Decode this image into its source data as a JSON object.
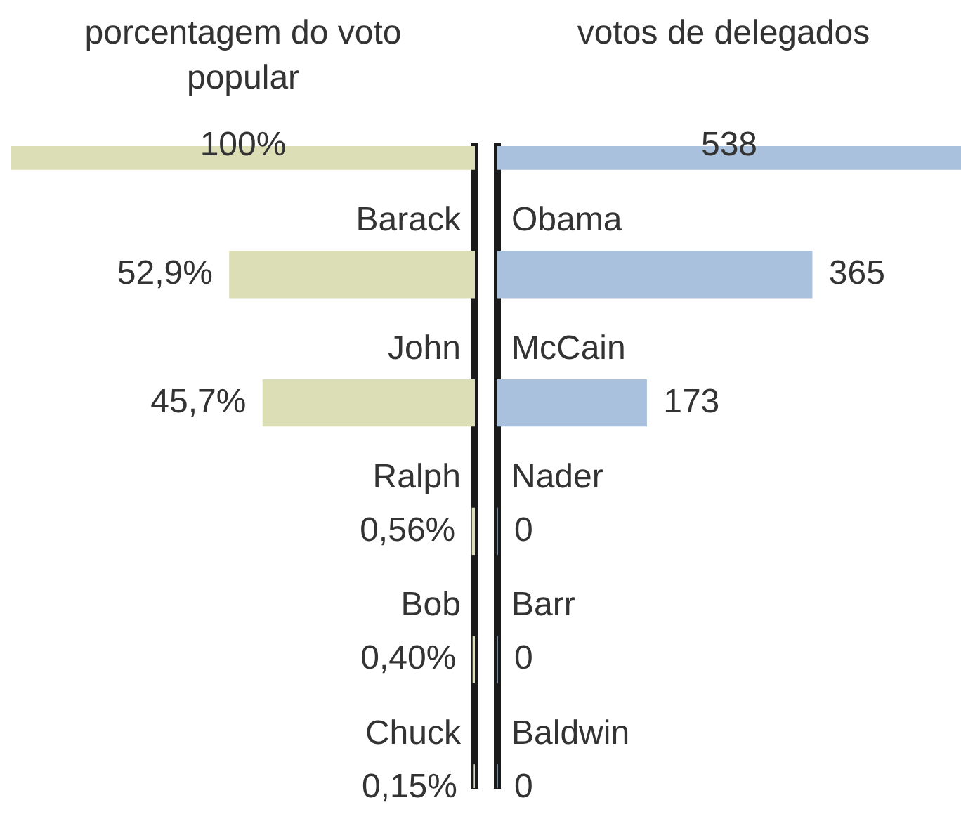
{
  "chart_data": [
    {
      "type": "bar",
      "orientation": "horizontal",
      "title": "porcentagem do voto popular",
      "categories": [
        null,
        "Barack",
        "John",
        "Ralph",
        "Bob",
        "Chuck"
      ],
      "values": [
        100,
        52.9,
        45.7,
        0.56,
        0.4,
        0.15
      ],
      "value_labels": [
        "100%",
        "52,9%",
        "45,7%",
        "0,56%",
        "0,40%",
        "0,15%"
      ],
      "color": "#dcdfb5",
      "xlim": [
        100,
        0
      ]
    },
    {
      "type": "bar",
      "orientation": "horizontal",
      "title": "votos de delegados",
      "categories": [
        null,
        "Obama",
        "McCain",
        "Nader",
        "Barr",
        "Baldwin"
      ],
      "values": [
        538,
        365,
        173,
        0,
        0,
        0
      ],
      "data_labels": true,
      "color": "#a9c1dc",
      "xlim": [
        0,
        538
      ]
    }
  ]
}
